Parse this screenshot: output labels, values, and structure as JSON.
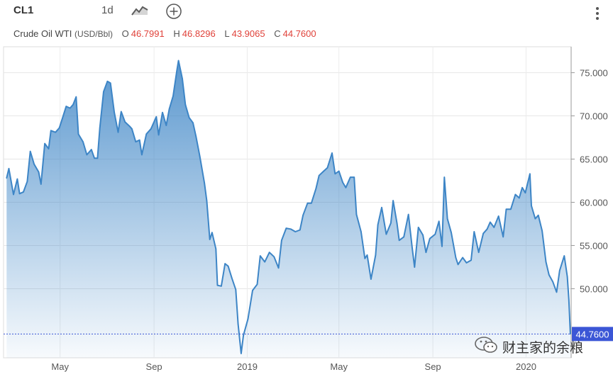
{
  "toolbar": {
    "symbol": "CL1",
    "interval": "1d",
    "chart_type_icon": "line-chart-icon",
    "add_icon": "plus-circle-icon",
    "menu_icon": "vertical-ellipsis-icon"
  },
  "legend": {
    "name": "Crude Oil WTI",
    "unit": "(USD/Bbl)",
    "open_label": "O",
    "open": "46.7991",
    "high_label": "H",
    "high": "46.8296",
    "low_label": "L",
    "low": "43.9065",
    "close_label": "C",
    "close": "44.7600"
  },
  "watermark": {
    "text": "财主家的余粮",
    "icon": "wechat-icon"
  },
  "colors": {
    "line": "#3d85c6",
    "fill": "#3d85c6",
    "price_label_bg": "#3b56d6",
    "ohlc_values": "#e0423a"
  },
  "chart_data": {
    "type": "area",
    "title": "",
    "xlabel": "",
    "ylabel": "",
    "ylim": [
      42.0,
      78.0
    ],
    "y_ticks": [
      50,
      55,
      60,
      65,
      70,
      75
    ],
    "y_tick_labels": [
      "50.000",
      "55.000",
      "60.000",
      "65.000",
      "70.000",
      "75.000"
    ],
    "x_tick_labels": [
      {
        "label": "May",
        "date": "2018-05-01"
      },
      {
        "label": "Sep",
        "date": "2018-09-01"
      },
      {
        "label": "2019",
        "date": "2019-01-01"
      },
      {
        "label": "May",
        "date": "2019-05-01"
      },
      {
        "label": "Sep",
        "date": "2019-09-01"
      },
      {
        "label": "2020",
        "date": "2020-01-01"
      }
    ],
    "last_price": 44.76,
    "last_price_label": "44.7600",
    "grid": true,
    "series": [
      {
        "points": [
          [
            "2018-02-20",
            62.8
          ],
          [
            "2018-02-23",
            63.9
          ],
          [
            "2018-03-01",
            60.9
          ],
          [
            "2018-03-06",
            62.7
          ],
          [
            "2018-03-09",
            61.0
          ],
          [
            "2018-03-14",
            61.2
          ],
          [
            "2018-03-19",
            62.4
          ],
          [
            "2018-03-23",
            65.9
          ],
          [
            "2018-03-28",
            64.4
          ],
          [
            "2018-04-03",
            63.5
          ],
          [
            "2018-04-06",
            62.1
          ],
          [
            "2018-04-11",
            66.8
          ],
          [
            "2018-04-16",
            66.2
          ],
          [
            "2018-04-19",
            68.3
          ],
          [
            "2018-04-25",
            68.1
          ],
          [
            "2018-04-30",
            68.6
          ],
          [
            "2018-05-04",
            69.7
          ],
          [
            "2018-05-09",
            71.1
          ],
          [
            "2018-05-14",
            70.9
          ],
          [
            "2018-05-18",
            71.3
          ],
          [
            "2018-05-22",
            72.2
          ],
          [
            "2018-05-25",
            67.9
          ],
          [
            "2018-05-31",
            67.0
          ],
          [
            "2018-06-05",
            65.5
          ],
          [
            "2018-06-11",
            66.1
          ],
          [
            "2018-06-15",
            65.1
          ],
          [
            "2018-06-19",
            65.1
          ],
          [
            "2018-06-22",
            68.6
          ],
          [
            "2018-06-27",
            72.8
          ],
          [
            "2018-07-02",
            74.0
          ],
          [
            "2018-07-06",
            73.8
          ],
          [
            "2018-07-11",
            70.4
          ],
          [
            "2018-07-16",
            68.1
          ],
          [
            "2018-07-20",
            70.5
          ],
          [
            "2018-07-25",
            69.3
          ],
          [
            "2018-07-31",
            68.8
          ],
          [
            "2018-08-03",
            68.5
          ],
          [
            "2018-08-08",
            67.0
          ],
          [
            "2018-08-13",
            67.2
          ],
          [
            "2018-08-16",
            65.5
          ],
          [
            "2018-08-22",
            67.9
          ],
          [
            "2018-08-28",
            68.5
          ],
          [
            "2018-09-04",
            69.9
          ],
          [
            "2018-09-07",
            67.8
          ],
          [
            "2018-09-12",
            70.4
          ],
          [
            "2018-09-17",
            68.9
          ],
          [
            "2018-09-21",
            70.8
          ],
          [
            "2018-09-26",
            72.3
          ],
          [
            "2018-10-01",
            75.3
          ],
          [
            "2018-10-03",
            76.4
          ],
          [
            "2018-10-08",
            74.3
          ],
          [
            "2018-10-12",
            71.3
          ],
          [
            "2018-10-17",
            69.8
          ],
          [
            "2018-10-22",
            69.2
          ],
          [
            "2018-10-26",
            67.6
          ],
          [
            "2018-10-31",
            65.3
          ],
          [
            "2018-11-06",
            62.2
          ],
          [
            "2018-11-09",
            60.2
          ],
          [
            "2018-11-13",
            55.7
          ],
          [
            "2018-11-16",
            56.5
          ],
          [
            "2018-11-21",
            54.6
          ],
          [
            "2018-11-23",
            50.4
          ],
          [
            "2018-11-28",
            50.3
          ],
          [
            "2018-12-03",
            52.9
          ],
          [
            "2018-12-07",
            52.6
          ],
          [
            "2018-12-12",
            51.2
          ],
          [
            "2018-12-17",
            49.9
          ],
          [
            "2018-12-20",
            45.9
          ],
          [
            "2018-12-24",
            42.5
          ],
          [
            "2018-12-27",
            44.6
          ],
          [
            "2019-01-02",
            46.5
          ],
          [
            "2019-01-08",
            49.8
          ],
          [
            "2019-01-14",
            50.5
          ],
          [
            "2019-01-18",
            53.8
          ],
          [
            "2019-01-24",
            53.1
          ],
          [
            "2019-01-30",
            54.2
          ],
          [
            "2019-02-05",
            53.7
          ],
          [
            "2019-02-11",
            52.4
          ],
          [
            "2019-02-15",
            55.6
          ],
          [
            "2019-02-21",
            57.0
          ],
          [
            "2019-02-27",
            56.9
          ],
          [
            "2019-03-05",
            56.6
          ],
          [
            "2019-03-11",
            56.8
          ],
          [
            "2019-03-15",
            58.5
          ],
          [
            "2019-03-21",
            59.9
          ],
          [
            "2019-03-26",
            59.9
          ],
          [
            "2019-04-01",
            61.6
          ],
          [
            "2019-04-05",
            63.1
          ],
          [
            "2019-04-11",
            63.6
          ],
          [
            "2019-04-16",
            64.0
          ],
          [
            "2019-04-22",
            65.7
          ],
          [
            "2019-04-26",
            63.3
          ],
          [
            "2019-05-01",
            63.6
          ],
          [
            "2019-05-06",
            62.3
          ],
          [
            "2019-05-10",
            61.7
          ],
          [
            "2019-05-16",
            62.9
          ],
          [
            "2019-05-21",
            62.9
          ],
          [
            "2019-05-24",
            58.6
          ],
          [
            "2019-05-30",
            56.6
          ],
          [
            "2019-06-04",
            53.5
          ],
          [
            "2019-06-07",
            53.9
          ],
          [
            "2019-06-12",
            51.1
          ],
          [
            "2019-06-18",
            53.9
          ],
          [
            "2019-06-21",
            57.4
          ],
          [
            "2019-06-26",
            59.4
          ],
          [
            "2019-07-02",
            56.3
          ],
          [
            "2019-07-08",
            57.6
          ],
          [
            "2019-07-11",
            60.2
          ],
          [
            "2019-07-16",
            57.6
          ],
          [
            "2019-07-19",
            55.6
          ],
          [
            "2019-07-25",
            56.0
          ],
          [
            "2019-07-31",
            58.6
          ],
          [
            "2019-08-05",
            54.7
          ],
          [
            "2019-08-08",
            52.5
          ],
          [
            "2019-08-13",
            57.1
          ],
          [
            "2019-08-19",
            56.2
          ],
          [
            "2019-08-23",
            54.2
          ],
          [
            "2019-08-28",
            55.8
          ],
          [
            "2019-09-04",
            56.3
          ],
          [
            "2019-09-09",
            57.8
          ],
          [
            "2019-09-13",
            54.9
          ],
          [
            "2019-09-16",
            62.9
          ],
          [
            "2019-09-20",
            58.1
          ],
          [
            "2019-09-25",
            56.5
          ],
          [
            "2019-10-01",
            53.6
          ],
          [
            "2019-10-04",
            52.8
          ],
          [
            "2019-10-10",
            53.6
          ],
          [
            "2019-10-15",
            53.0
          ],
          [
            "2019-10-21",
            53.3
          ],
          [
            "2019-10-25",
            56.6
          ],
          [
            "2019-10-31",
            54.2
          ],
          [
            "2019-11-06",
            56.4
          ],
          [
            "2019-11-11",
            56.9
          ],
          [
            "2019-11-15",
            57.7
          ],
          [
            "2019-11-20",
            57.1
          ],
          [
            "2019-11-26",
            58.4
          ],
          [
            "2019-12-02",
            56.0
          ],
          [
            "2019-12-06",
            59.2
          ],
          [
            "2019-12-12",
            59.2
          ],
          [
            "2019-12-18",
            60.9
          ],
          [
            "2019-12-23",
            60.5
          ],
          [
            "2019-12-27",
            61.7
          ],
          [
            "2019-12-31",
            61.1
          ],
          [
            "2020-01-06",
            63.3
          ],
          [
            "2020-01-08",
            59.6
          ],
          [
            "2020-01-13",
            58.1
          ],
          [
            "2020-01-17",
            58.5
          ],
          [
            "2020-01-22",
            56.7
          ],
          [
            "2020-01-27",
            53.1
          ],
          [
            "2020-01-31",
            51.6
          ],
          [
            "2020-02-05",
            50.8
          ],
          [
            "2020-02-10",
            49.6
          ],
          [
            "2020-02-14",
            52.1
          ],
          [
            "2020-02-20",
            53.8
          ],
          [
            "2020-02-24",
            51.4
          ],
          [
            "2020-02-26",
            48.7
          ],
          [
            "2020-02-28",
            44.76
          ]
        ]
      }
    ]
  }
}
